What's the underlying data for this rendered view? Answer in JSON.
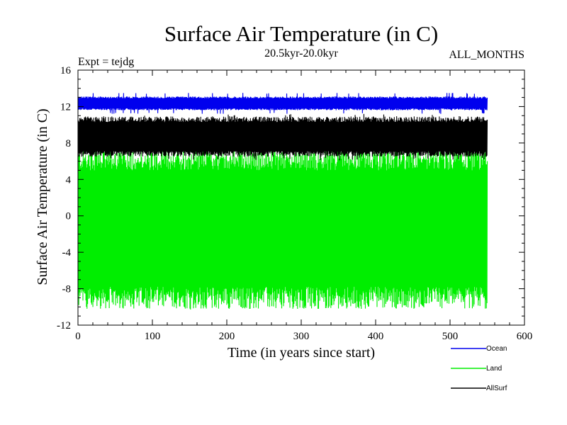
{
  "chart_data": {
    "type": "line",
    "title": "Surface Air Temperature (in C)",
    "subtitle": "20.5kyr-20.0kyr",
    "experiment_label": "Expt = tejdg",
    "months_label": "ALL_MONTHS",
    "xlabel": "Time (in years since start)",
    "ylabel": "Surface Air Temperature (in C)",
    "xlim": [
      0,
      600
    ],
    "ylim": [
      -12,
      16
    ],
    "xticks": [
      0,
      100,
      200,
      300,
      400,
      500,
      600
    ],
    "yticks": [
      -12,
      -8,
      -4,
      0,
      4,
      8,
      12,
      16
    ],
    "data_xrange": [
      0,
      550
    ],
    "series": [
      {
        "name": "Land",
        "color": "#00ee00",
        "mean": -1.5,
        "min": -10.3,
        "max": 7.4,
        "typical_low": -9.0,
        "typical_high": 6.2
      },
      {
        "name": "AllSurf",
        "color": "#000000",
        "mean": 8.7,
        "min": 6.1,
        "max": 11.2,
        "typical_low": 6.8,
        "typical_high": 10.6
      },
      {
        "name": "Ocean",
        "color": "#0000ee",
        "mean": 12.4,
        "min": 11.2,
        "max": 13.5,
        "typical_low": 11.7,
        "typical_high": 13.0
      }
    ],
    "legend": [
      {
        "name": "Ocean",
        "color": "#0000ee"
      },
      {
        "name": "Land",
        "color": "#00ee00"
      },
      {
        "name": "AllSurf",
        "color": "#000000"
      }
    ]
  }
}
